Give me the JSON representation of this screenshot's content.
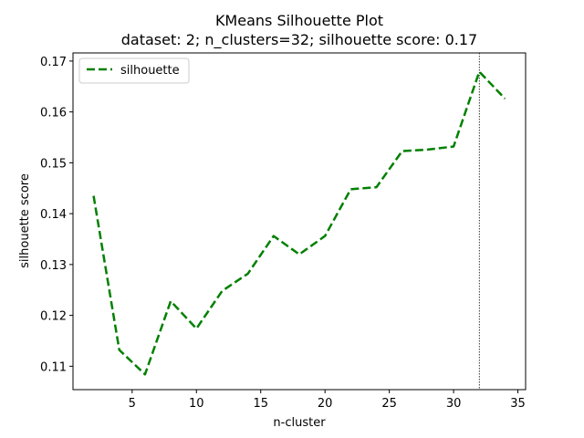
{
  "chart_data": {
    "type": "line",
    "title": "KMeans Silhouette Plot",
    "subtitle": "dataset: 2; n_clusters=32; silhouette score: 0.17",
    "xlabel": "n-cluster",
    "ylabel": "silhouette score",
    "xlim": [
      0.4,
      35.6
    ],
    "ylim": [
      0.1054,
      0.1716
    ],
    "xticks": [
      5,
      10,
      15,
      20,
      25,
      30,
      35
    ],
    "yticks": [
      0.11,
      0.12,
      0.13,
      0.14,
      0.15,
      0.16,
      0.17
    ],
    "xtick_labels": [
      "5",
      "10",
      "15",
      "20",
      "25",
      "30",
      "35"
    ],
    "ytick_labels": [
      "0.11",
      "0.12",
      "0.13",
      "0.14",
      "0.15",
      "0.16",
      "0.17"
    ],
    "legend_position": "top-left",
    "grid": false,
    "series": [
      {
        "name": "silhouette",
        "color": "#008000",
        "linestyle": "dashed",
        "x": [
          2,
          4,
          6,
          8,
          10,
          12,
          14,
          16,
          18,
          20,
          22,
          24,
          26,
          28,
          30,
          32,
          34
        ],
        "y": [
          0.1435,
          0.1132,
          0.1084,
          0.1228,
          0.1174,
          0.1248,
          0.1282,
          0.1356,
          0.132,
          0.1356,
          0.1448,
          0.1452,
          0.1523,
          0.1526,
          0.1532,
          0.1679,
          0.1626
        ]
      }
    ],
    "vline": {
      "x": 32,
      "color": "#000000",
      "linestyle": "dotted"
    }
  }
}
